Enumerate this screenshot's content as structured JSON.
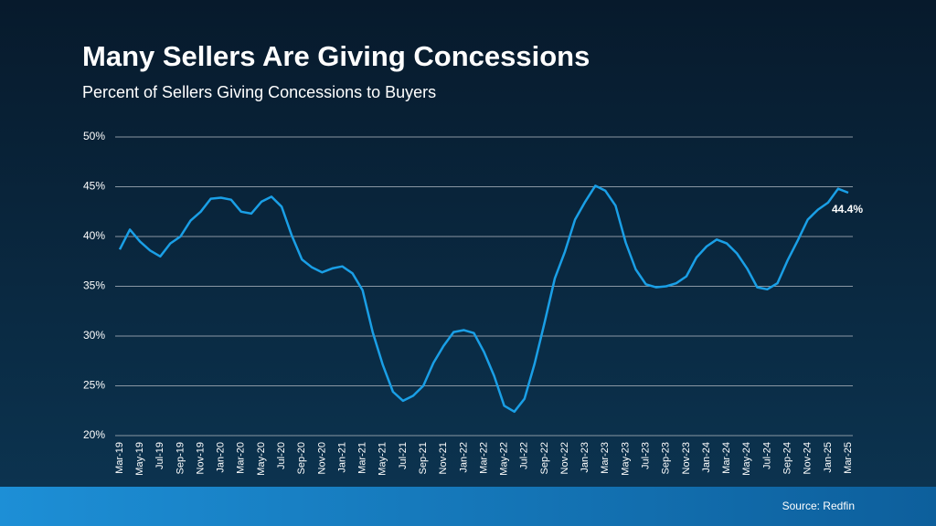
{
  "chart_data": {
    "type": "line",
    "title": "Many Sellers Are Giving Concessions",
    "subtitle": "Percent of Sellers Giving Concessions to Buyers",
    "source": "Source: Redfin",
    "color": "#1a9fe6",
    "grid": true,
    "ylim": [
      20,
      50
    ],
    "yticks": [
      {
        "value": 20,
        "label": "20%"
      },
      {
        "value": 25,
        "label": "25%"
      },
      {
        "value": 30,
        "label": "30%"
      },
      {
        "value": 35,
        "label": "35%"
      },
      {
        "value": 40,
        "label": "40%"
      },
      {
        "value": 45,
        "label": "45%"
      },
      {
        "value": 50,
        "label": "50%"
      }
    ],
    "categories": [
      "Mar-19",
      null,
      "May-19",
      null,
      "Jul-19",
      null,
      "Sep-19",
      null,
      "Nov-19",
      null,
      "Jan-20",
      null,
      "Mar-20",
      null,
      "May-20",
      null,
      "Jul-20",
      null,
      "Sep-20",
      null,
      "Nov-20",
      null,
      "Jan-21",
      null,
      "Mar-21",
      null,
      "May-21",
      null,
      "Jul-21",
      null,
      "Sep-21",
      null,
      "Nov-21",
      null,
      "Jan-22",
      null,
      "Mar-22",
      null,
      "May-22",
      null,
      "Jul-22",
      null,
      "Sep-22",
      null,
      "Nov-22",
      null,
      "Jan-23",
      null,
      "Mar-23",
      null,
      "May-23",
      null,
      "Jul-23",
      null,
      "Sep-23",
      null,
      "Nov-23",
      null,
      "Jan-24",
      null,
      "Mar-24",
      null,
      "May-24",
      null,
      "Jul-24",
      null,
      "Sep-24",
      null,
      "Nov-24",
      null,
      "Jan-25",
      null,
      "Mar-25"
    ],
    "values": [
      38.7,
      40.7,
      39.5,
      38.6,
      38.0,
      39.3,
      40.0,
      41.6,
      42.5,
      43.8,
      43.9,
      43.7,
      42.5,
      42.3,
      43.5,
      44.0,
      43.0,
      40.1,
      37.7,
      36.9,
      36.4,
      36.8,
      37.0,
      36.3,
      34.6,
      30.4,
      27.1,
      24.4,
      23.5,
      24.0,
      25.0,
      27.3,
      29.0,
      30.4,
      30.6,
      30.3,
      28.4,
      26.0,
      23.0,
      22.4,
      23.7,
      27.2,
      31.4,
      35.8,
      38.5,
      41.7,
      43.5,
      45.1,
      44.6,
      43.1,
      39.4,
      36.7,
      35.2,
      34.9,
      35.0,
      35.3,
      36.0,
      37.9,
      39.0,
      39.7,
      39.3,
      38.3,
      36.8,
      34.9,
      34.7,
      35.3,
      37.6,
      39.6,
      41.7,
      42.7,
      43.4,
      44.8,
      44.4
    ],
    "value_labels": [
      null,
      null,
      null,
      null,
      null,
      null,
      null,
      null,
      null,
      null,
      null,
      null,
      null,
      null,
      null,
      null,
      null,
      null,
      null,
      null,
      null,
      null,
      null,
      null,
      null,
      null,
      null,
      null,
      null,
      null,
      null,
      null,
      null,
      null,
      null,
      null,
      null,
      null,
      null,
      null,
      null,
      null,
      null,
      null,
      null,
      null,
      null,
      null,
      null,
      null,
      null,
      null,
      null,
      null,
      null,
      null,
      null,
      null,
      null,
      null,
      null,
      null,
      null,
      null,
      null,
      null,
      null,
      null,
      null,
      null,
      null,
      null,
      "44.4%"
    ]
  }
}
